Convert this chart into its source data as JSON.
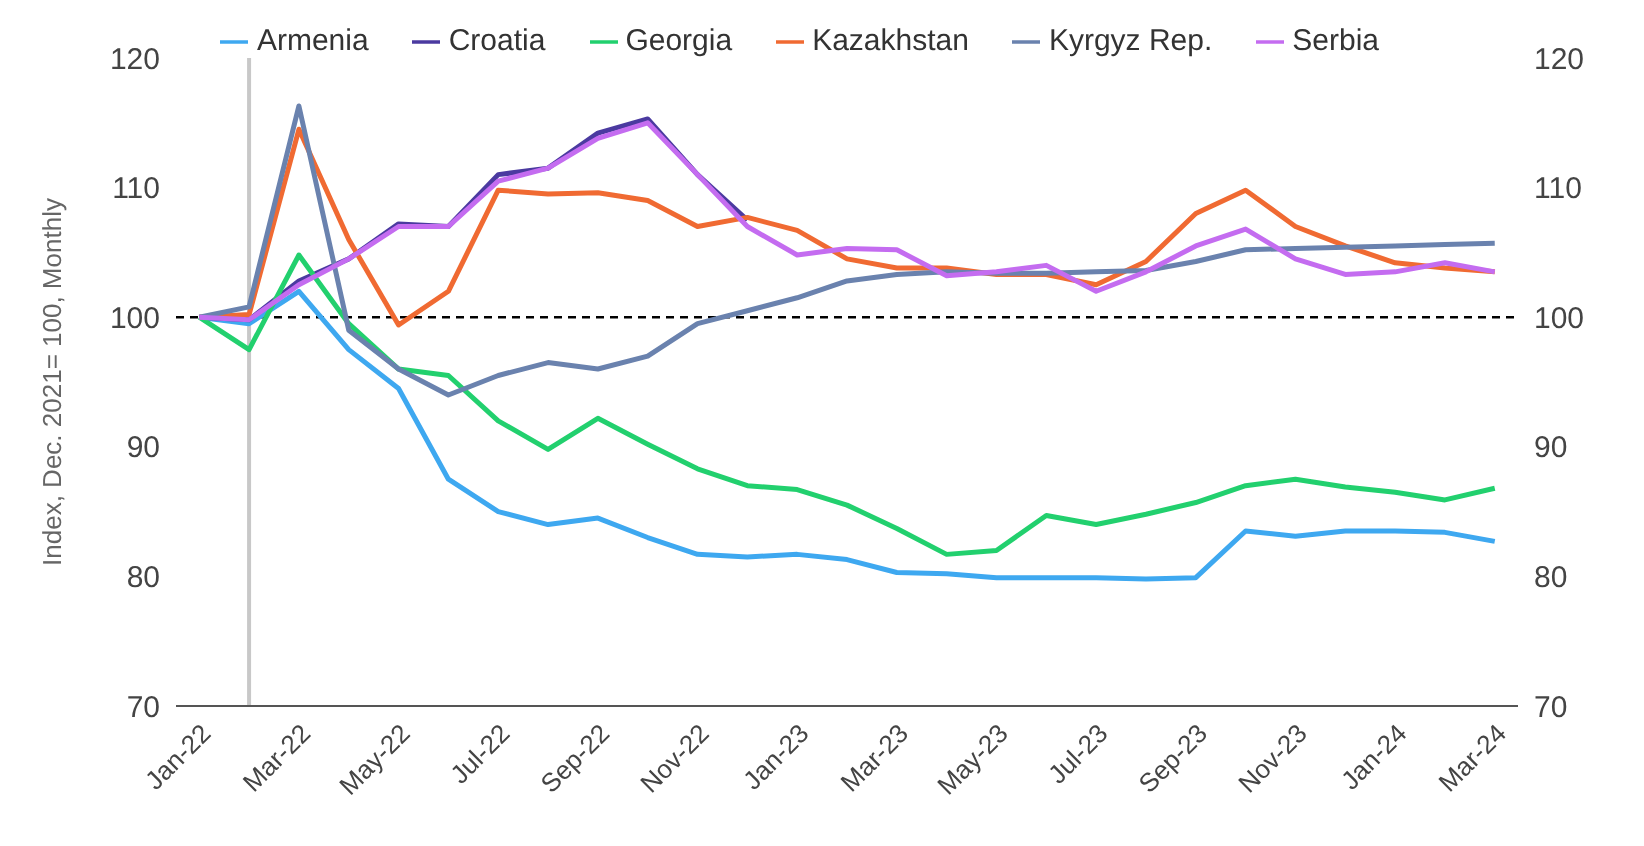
{
  "chart_data": {
    "type": "line",
    "ylabel": "Index, Dec. 2021= 100, Monthly",
    "x": [
      "2022-01",
      "2022-02",
      "2022-03",
      "2022-04",
      "2022-05",
      "2022-06",
      "2022-07",
      "2022-08",
      "2022-09",
      "2022-10",
      "2022-11",
      "2022-12",
      "2023-01",
      "2023-02",
      "2023-03",
      "2023-04",
      "2023-05",
      "2023-06",
      "2023-07",
      "2023-08",
      "2023-09",
      "2023-10",
      "2023-11",
      "2023-12",
      "2024-01",
      "2024-02",
      "2024-03"
    ],
    "series": [
      {
        "name": "Armenia",
        "color": "#3ea8f0",
        "values": [
          100,
          99.5,
          102,
          97.5,
          94.5,
          87.5,
          85,
          84,
          84.5,
          83,
          81.7,
          81.5,
          81.7,
          81.3,
          80.3,
          80.2,
          79.9,
          79.9,
          79.9,
          79.8,
          79.9,
          83.5,
          83.1,
          83.5,
          83.5,
          83.4,
          82.7
        ]
      },
      {
        "name": "Croatia",
        "color": "#4b3aa0",
        "values": [
          100,
          99.8,
          102.8,
          104.5,
          107.2,
          107,
          111,
          111.5,
          114.2,
          115.3,
          111,
          107.5,
          null,
          null,
          null,
          null,
          null,
          null,
          null,
          null,
          null,
          null,
          null,
          null,
          null,
          null,
          null
        ]
      },
      {
        "name": "Georgia",
        "color": "#22d06e",
        "values": [
          100,
          97.5,
          104.8,
          99.5,
          96,
          95.5,
          92,
          89.8,
          92.2,
          90.2,
          88.3,
          87,
          86.7,
          85.5,
          83.7,
          81.7,
          82,
          84.7,
          84,
          84.8,
          85.7,
          87,
          87.5,
          86.9,
          86.5,
          85.9,
          86.8
        ]
      },
      {
        "name": "Kazakhstan",
        "color": "#f06a32",
        "values": [
          100,
          100.2,
          114.5,
          106,
          99.4,
          102,
          109.8,
          109.5,
          109.6,
          109,
          107,
          107.7,
          106.7,
          104.5,
          103.8,
          103.8,
          103.3,
          103.3,
          102.5,
          104.3,
          108,
          109.8,
          107,
          105.5,
          104.2,
          103.8,
          103.5
        ]
      },
      {
        "name": "Kyrgyz Rep.",
        "color": "#6a82ae",
        "values": [
          100,
          100.8,
          116.3,
          99,
          96,
          94,
          95.5,
          96.5,
          96,
          97,
          99.5,
          100.5,
          101.5,
          102.8,
          103.3,
          103.5,
          103.4,
          103.4,
          103.5,
          103.6,
          104.3,
          105.2,
          105.3,
          105.4,
          105.5,
          105.6,
          105.7
        ]
      },
      {
        "name": "Serbia",
        "color": "#c46cf0",
        "values": [
          100,
          99.8,
          102.5,
          104.5,
          107,
          107,
          110.5,
          111.5,
          113.8,
          115,
          111,
          107,
          104.8,
          105.3,
          105.2,
          103.2,
          103.5,
          104,
          102,
          103.5,
          105.5,
          106.8,
          104.5,
          103.3,
          103.5,
          104.2,
          103.5
        ]
      }
    ],
    "xlim": [
      "2021-12-17",
      "2024-03-15"
    ],
    "xticks": [
      {
        "value": "2022-01",
        "label": "Jan-22"
      },
      {
        "value": "2022-03",
        "label": "Mar-22"
      },
      {
        "value": "2022-05",
        "label": "May-22"
      },
      {
        "value": "2022-07",
        "label": "Jul-22"
      },
      {
        "value": "2022-09",
        "label": "Sep-22"
      },
      {
        "value": "2022-11",
        "label": "Nov-22"
      },
      {
        "value": "2023-01",
        "label": "Jan-23"
      },
      {
        "value": "2023-03",
        "label": "Mar-23"
      },
      {
        "value": "2023-05",
        "label": "May-23"
      },
      {
        "value": "2023-07",
        "label": "Jul-23"
      },
      {
        "value": "2023-09",
        "label": "Sep-23"
      },
      {
        "value": "2023-11",
        "label": "Nov-23"
      },
      {
        "value": "2024-01",
        "label": "Jan-24"
      },
      {
        "value": "2024-03",
        "label": "Mar-24"
      }
    ],
    "ylim": [
      70,
      120
    ],
    "yticks": [
      70,
      80,
      90,
      100,
      110,
      120
    ],
    "y2lim": [
      70,
      120
    ],
    "y2ticks": [
      70,
      80,
      90,
      100,
      110,
      120
    ],
    "ref_lines": [
      {
        "axis": "y",
        "value": 100,
        "color": "#000000",
        "line_style": "dashed"
      },
      {
        "axis": "x",
        "value": "2022-02",
        "color": "#c8c8c8",
        "line_style": "solid"
      }
    ],
    "grid": false,
    "legend": "top",
    "marker": "none",
    "line_style": "solid"
  }
}
